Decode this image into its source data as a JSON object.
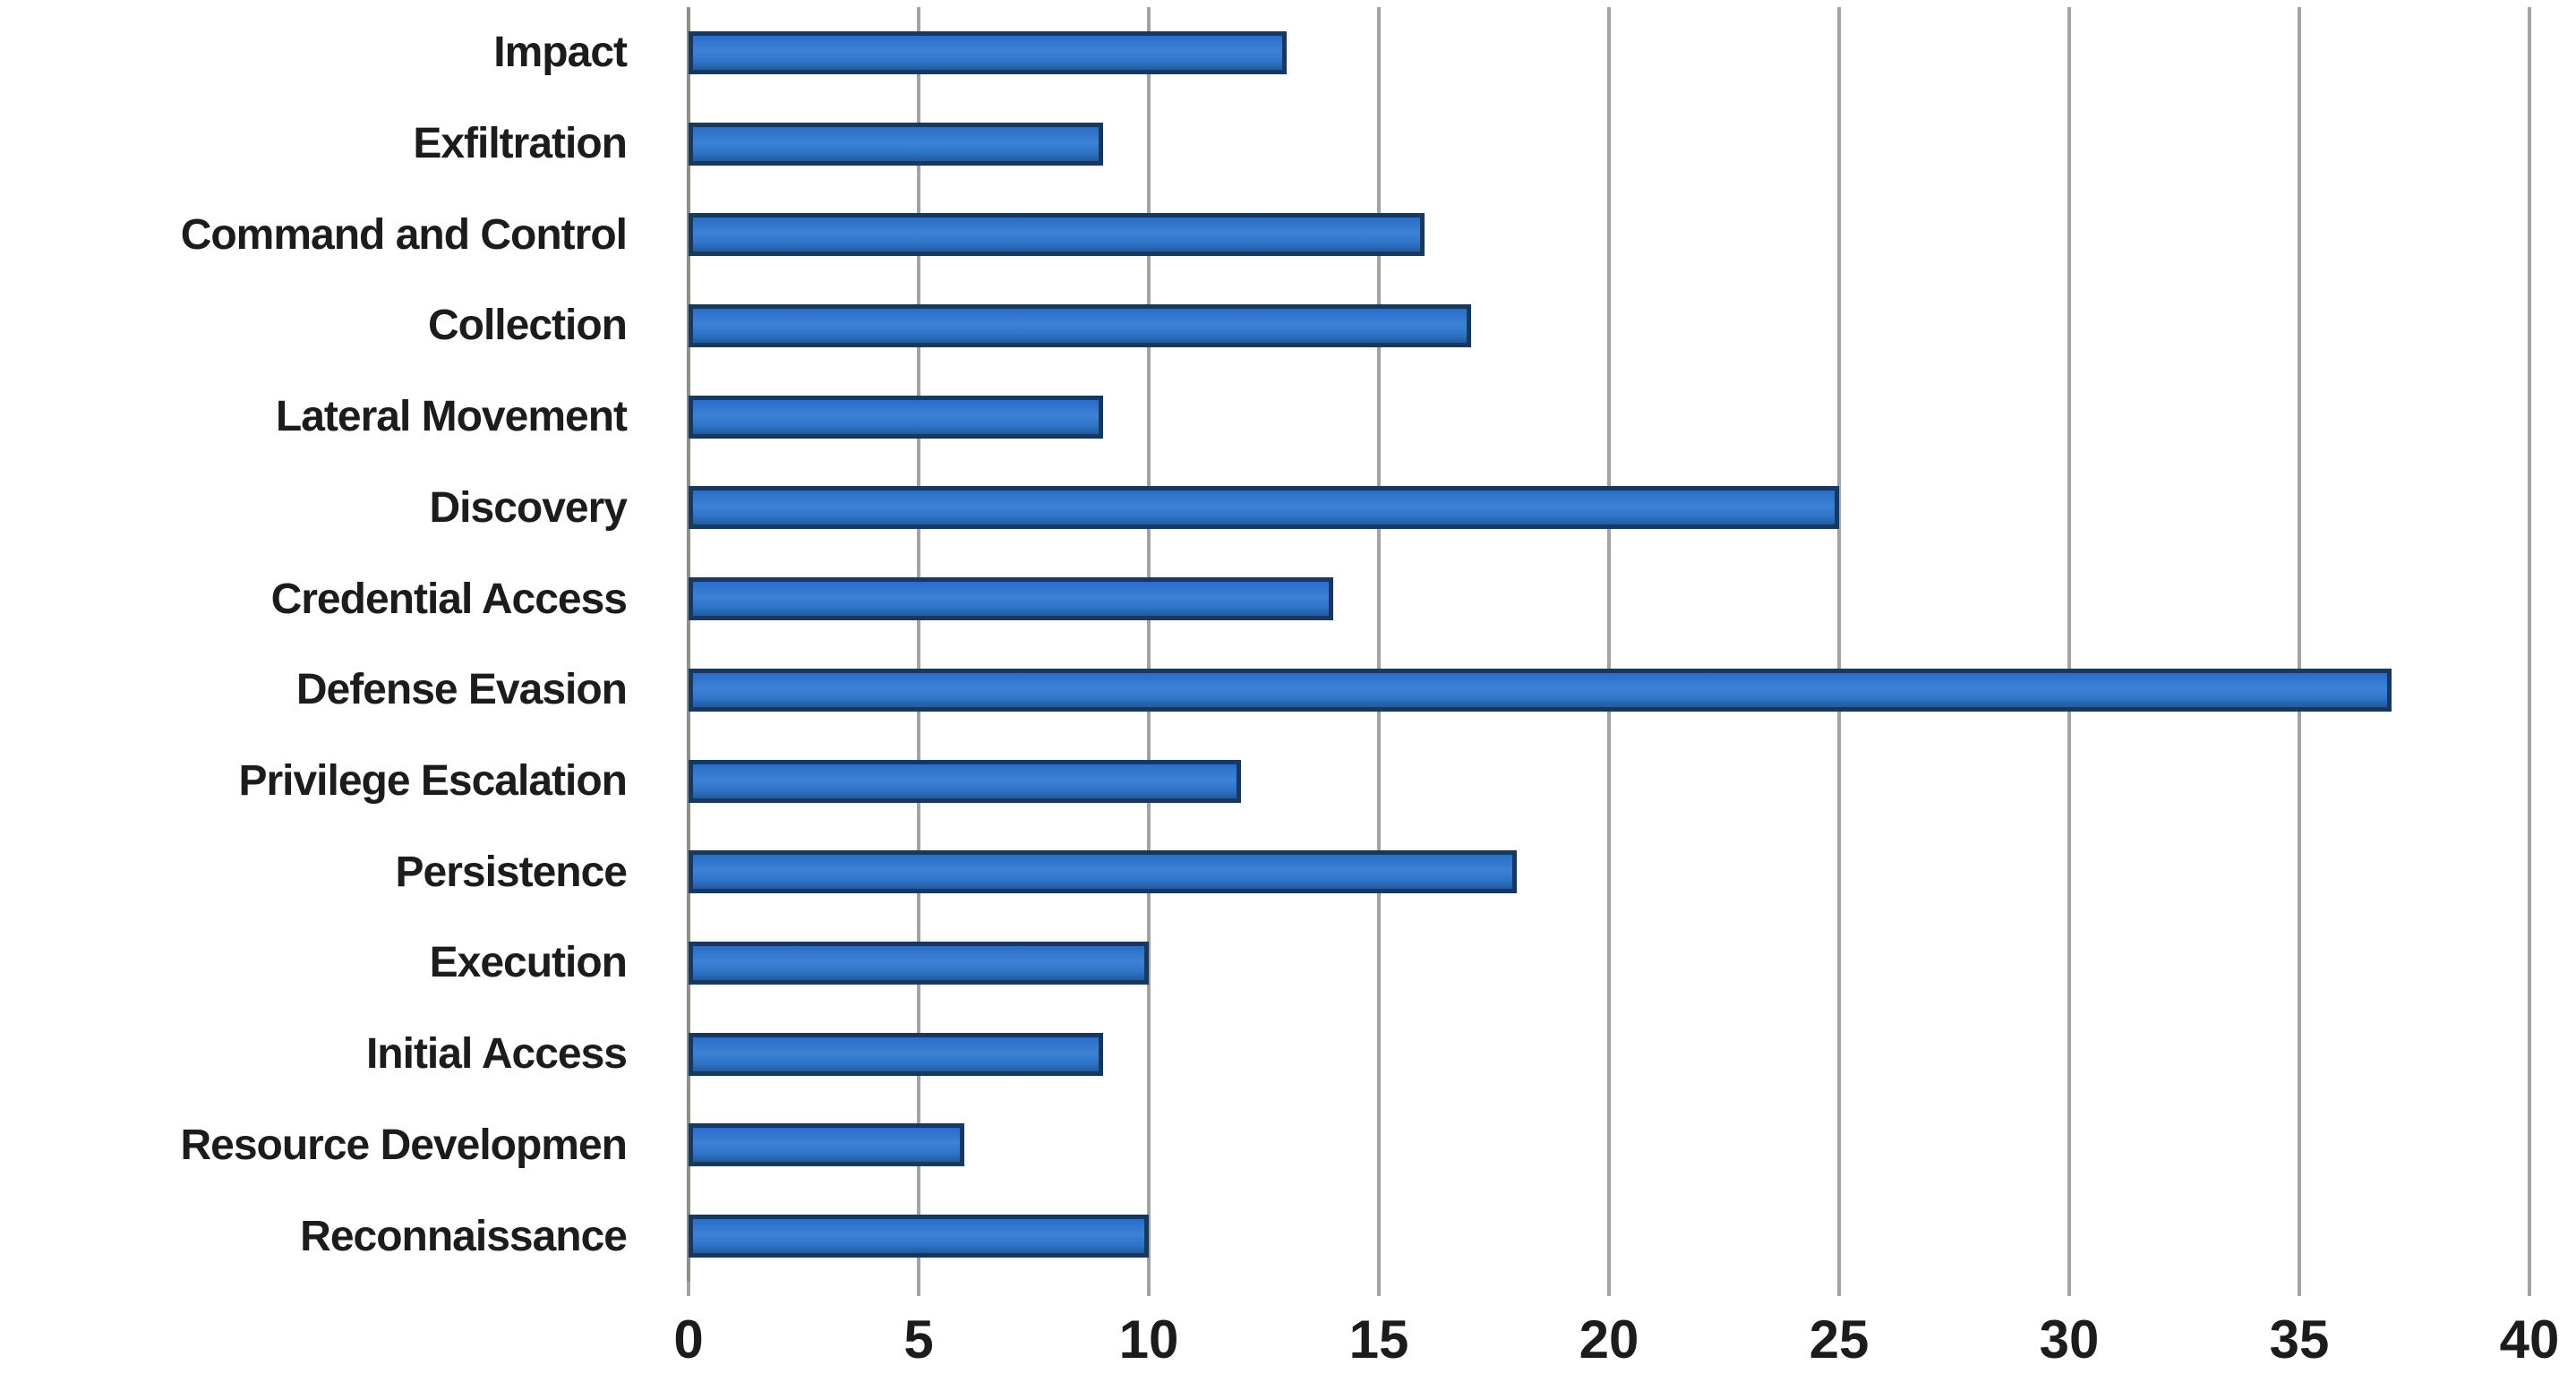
{
  "chart_data": {
    "type": "bar",
    "orientation": "horizontal",
    "title": "",
    "xlabel": "",
    "ylabel": "",
    "categories": [
      "Impact",
      "Exfiltration",
      "Command and Control",
      "Collection",
      "Lateral Movement",
      "Discovery",
      "Credential Access",
      "Defense Evasion",
      "Privilege Escalation",
      "Persistence",
      "Execution",
      "Initial Access",
      "Resource Developmen",
      "Reconnaissance"
    ],
    "values": [
      13,
      9,
      16,
      17,
      9,
      25,
      14,
      37,
      12,
      18,
      10,
      9,
      6,
      10
    ],
    "xlim": [
      0,
      40
    ],
    "x_ticks": [
      0,
      5,
      10,
      15,
      20,
      25,
      30,
      35,
      40
    ],
    "grid": "vertical-only",
    "legend": "none",
    "colors": {
      "bar_fill_top": "#2a6cc9",
      "bar_fill_mid": "#3c82d6",
      "bar_fill_low": "#2e74c8",
      "bar_fill_bottom": "#245a9e",
      "bar_border": "#17395f",
      "gridline": "#a3a3a3",
      "axis_line": "#8f8f85",
      "text": "#1c1c1c",
      "background": "#ffffff"
    }
  }
}
